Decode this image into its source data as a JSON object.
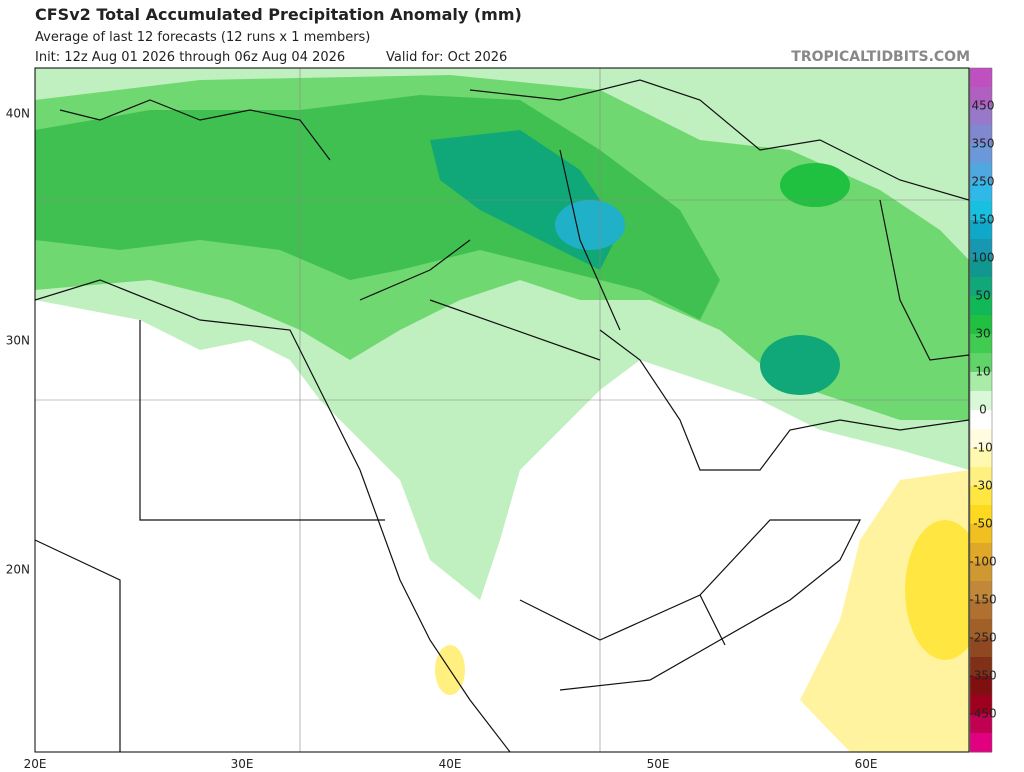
{
  "header": {
    "title": "CFSv2 Total Accumulated Precipitation Anomaly (mm)",
    "subtitle": "Average of last 12 forecasts (12 runs x 1 members)",
    "init": "Init: 12z Aug 01 2026 through 06z Aug 04 2026",
    "valid": "Valid for: Oct 2026",
    "watermark": "TROPICALTIDBITS.COM"
  },
  "map": {
    "lat_labels": [
      "40N",
      "30N",
      "20N"
    ],
    "lon_labels": [
      "20E",
      "30E",
      "40E",
      "50E",
      "60E"
    ]
  },
  "colorbar": {
    "ticks": [
      450,
      350,
      250,
      150,
      100,
      50,
      30,
      10,
      0,
      -10,
      -30,
      -50,
      -100,
      -150,
      -250,
      -350,
      -450
    ],
    "colors": [
      "#c050c0",
      "#b060c0",
      "#9878c8",
      "#8088d0",
      "#6a98d8",
      "#50a8e0",
      "#30b8e8",
      "#18c0e0",
      "#10a8c8",
      "#1898b0",
      "#109890",
      "#10a878",
      "#10b858",
      "#20c040",
      "#40cc50",
      "#60d468",
      "#a8eca8",
      "#d8f8d8",
      "#ffffff",
      "#fffce0",
      "#fff8b0",
      "#fff080",
      "#ffe640",
      "#ffd820",
      "#f0c020",
      "#e0a828",
      "#d09830",
      "#c08838",
      "#b07030",
      "#a06028",
      "#904820",
      "#803018",
      "#801010",
      "#a00020",
      "#c00050",
      "#e00080"
    ]
  }
}
